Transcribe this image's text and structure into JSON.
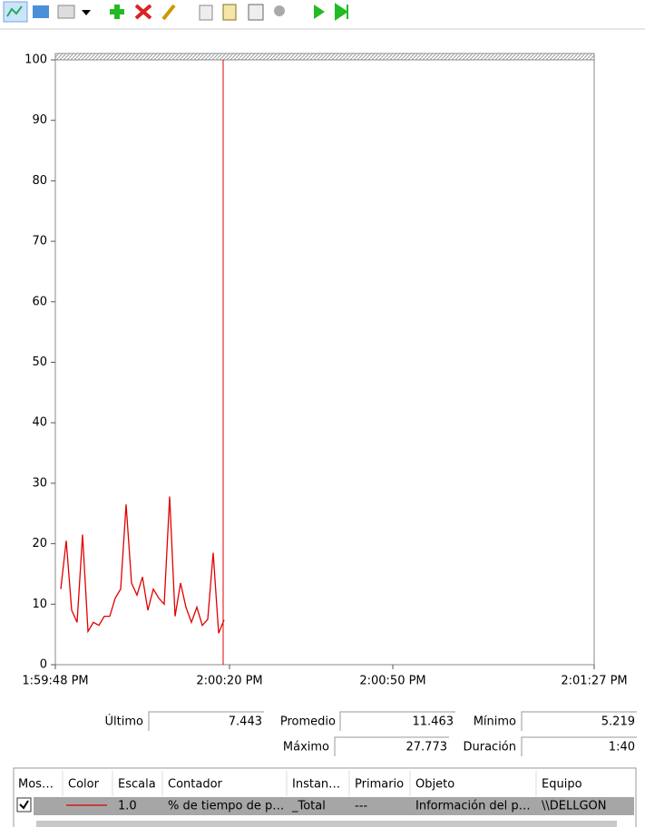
{
  "chart_data": {
    "type": "line",
    "x": [
      1,
      2,
      3,
      4,
      5,
      6,
      7,
      8,
      9,
      10,
      11,
      12,
      13,
      14,
      15,
      16,
      17,
      18,
      19,
      20,
      21,
      22,
      23,
      24,
      25,
      26,
      27,
      28,
      29,
      30,
      31
    ],
    "series": [
      {
        "name": "% de tiempo de p…",
        "color": "#e00000",
        "values": [
          12.5,
          20.5,
          9,
          7,
          21.5,
          5.5,
          7,
          6.5,
          8,
          8,
          11,
          12.5,
          26.5,
          13.5,
          11.5,
          14.5,
          9,
          12.5,
          11,
          10,
          27.8,
          8,
          13.5,
          9.5,
          7,
          9.5,
          6.5,
          7.5,
          18.5,
          5.2,
          7.4
        ]
      }
    ],
    "xlim": [
      0,
      99
    ],
    "xticks": [
      {
        "value": 0,
        "label": "1:59:48 PM"
      },
      {
        "value": 32,
        "label": "2:00:20 PM"
      },
      {
        "value": 62,
        "label": "2:00:50 PM"
      },
      {
        "value": 99,
        "label": "2:01:27 PM"
      }
    ],
    "ylim": [
      0,
      100
    ],
    "yticks": [
      0,
      10,
      20,
      30,
      40,
      50,
      60,
      70,
      80,
      90,
      100
    ],
    "grid": false
  },
  "stats": [
    {
      "label": "Último",
      "value": "7.443"
    },
    {
      "label": "Promedio",
      "value": "11.463"
    },
    {
      "label": "Mínimo",
      "value": "5.219"
    },
    {
      "label": "Máximo",
      "value": "27.773"
    },
    {
      "label": "Duración",
      "value": "1:40"
    }
  ],
  "table": {
    "headers": [
      "Mos…",
      "Color",
      "Escala",
      "Contador",
      "Instan…",
      "Primario",
      "Objeto",
      "Equipo"
    ],
    "rows": [
      [
        "1.0",
        "% de tiempo de p…",
        "_Total",
        "---",
        "Información del p…",
        "\\\\DELLGON"
      ]
    ]
  }
}
